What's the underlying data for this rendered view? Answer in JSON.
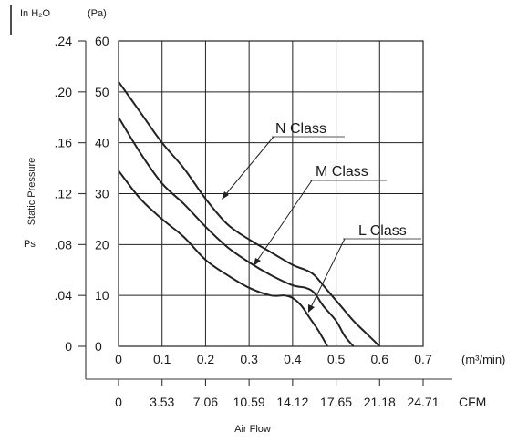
{
  "units": {
    "left_unit": "In H₂O",
    "right_unit": "(Pa)",
    "ylabel": "Static Pressure",
    "ylabel_short": "Ps",
    "xunit_primary": "(m³/min)",
    "xunit_secondary": "CFM",
    "xlabel": "Air Flow"
  },
  "chart_data": {
    "type": "line",
    "xlabel": "Air Flow",
    "ylabel": "Static Pressure",
    "xlim": [
      0,
      0.7
    ],
    "ylim": [
      0,
      60
    ],
    "x_ticks": [
      "0",
      "0.1",
      "0.2",
      "0.3",
      "0.4",
      "0.5",
      "0.6",
      "0.7"
    ],
    "x_ticks_cfm": [
      "0",
      "3.53",
      "7.06",
      "10.59",
      "14.12",
      "17.65",
      "21.18",
      "24.71"
    ],
    "y_ticks_pa": [
      "0",
      "10",
      "20",
      "30",
      "40",
      "50",
      "60"
    ],
    "y_ticks_inh2o": [
      "0",
      ".04",
      ".08",
      ".12",
      ".16",
      ".20",
      ".24"
    ],
    "grid": true,
    "series": [
      {
        "name": "N Class",
        "x": [
          0,
          0.05,
          0.1,
          0.15,
          0.2,
          0.25,
          0.3,
          0.35,
          0.4,
          0.43,
          0.45,
          0.48,
          0.51,
          0.54,
          0.57,
          0.6
        ],
        "y": [
          52,
          46,
          40,
          35,
          29,
          24,
          21,
          18.5,
          16,
          15,
          14,
          11,
          8,
          5,
          2.5,
          0
        ]
      },
      {
        "name": "M Class",
        "x": [
          0,
          0.05,
          0.1,
          0.15,
          0.2,
          0.25,
          0.3,
          0.35,
          0.4,
          0.43,
          0.45,
          0.47,
          0.5,
          0.52,
          0.54
        ],
        "y": [
          45,
          38,
          32,
          28,
          23.5,
          19.5,
          16.5,
          14,
          12,
          11.5,
          10.5,
          8,
          5,
          2,
          0
        ]
      },
      {
        "name": "L Class",
        "x": [
          0,
          0.05,
          0.1,
          0.15,
          0.2,
          0.25,
          0.3,
          0.35,
          0.38,
          0.4,
          0.42,
          0.44,
          0.46,
          0.48
        ],
        "y": [
          34.5,
          29,
          25,
          21.5,
          17,
          14,
          11.5,
          10,
          10,
          9.5,
          8,
          5.5,
          3,
          0
        ]
      }
    ]
  }
}
